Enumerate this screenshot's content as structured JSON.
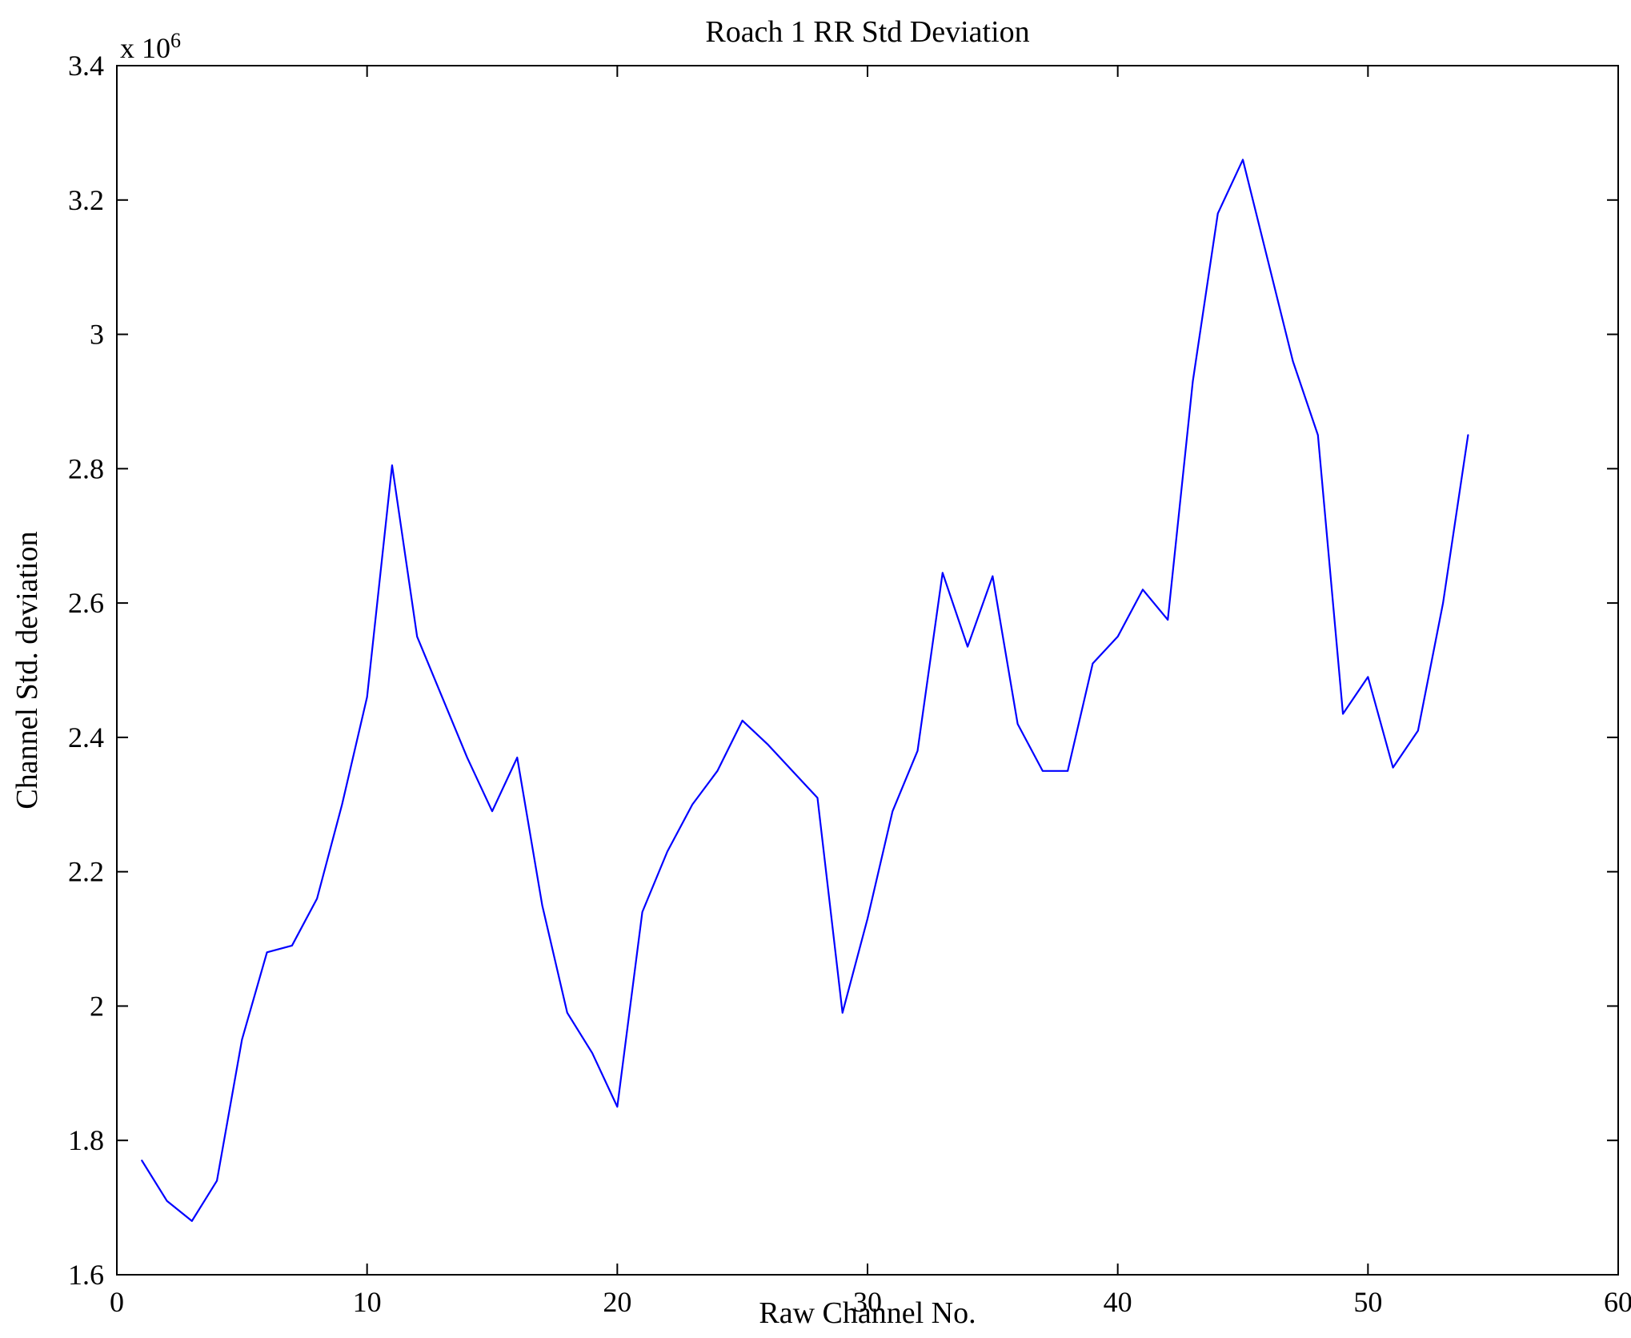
{
  "chart_data": {
    "type": "line",
    "title": "Roach 1 RR Std Deviation",
    "xlabel": "Raw Channel No.",
    "ylabel": "Channel Std. deviation",
    "y_axis_multiplier": "x 10",
    "y_axis_exponent": "6",
    "xlim": [
      0,
      60
    ],
    "ylim": [
      1.6,
      3.4
    ],
    "xticks": [
      0,
      10,
      20,
      30,
      40,
      50,
      60
    ],
    "xtick_labels": [
      "0",
      "10",
      "20",
      "30",
      "40",
      "50",
      "60"
    ],
    "yticks": [
      1.6,
      1.8,
      2,
      2.2,
      2.4,
      2.6,
      2.8,
      3,
      3.2,
      3.4
    ],
    "ytick_labels": [
      "1.6",
      "1.8",
      "2",
      "2.2",
      "2.4",
      "2.6",
      "2.8",
      "3",
      "3.2",
      "3.4"
    ],
    "grid": false,
    "legend": "none",
    "line_color": "#0000ff",
    "axis_color": "#000000",
    "x": [
      1,
      2,
      3,
      4,
      5,
      6,
      7,
      8,
      9,
      10,
      11,
      12,
      13,
      14,
      15,
      16,
      17,
      18,
      19,
      20,
      21,
      22,
      23,
      24,
      25,
      26,
      27,
      28,
      29,
      30,
      31,
      32,
      33,
      34,
      35,
      36,
      37,
      38,
      39,
      40,
      41,
      42,
      43,
      44,
      45,
      46,
      47,
      48,
      49,
      50,
      51,
      52,
      53,
      54
    ],
    "y": [
      1.77,
      1.71,
      1.68,
      1.74,
      1.95,
      2.08,
      2.09,
      2.16,
      2.3,
      2.46,
      2.805,
      2.55,
      2.46,
      2.37,
      2.29,
      2.37,
      2.15,
      1.99,
      1.93,
      1.85,
      2.14,
      2.23,
      2.3,
      2.35,
      2.425,
      2.39,
      2.35,
      2.31,
      1.99,
      2.13,
      2.29,
      2.38,
      2.645,
      2.535,
      2.64,
      2.42,
      2.35,
      2.35,
      2.51,
      2.55,
      2.62,
      2.575,
      2.93,
      3.18,
      3.26,
      3.11,
      2.96,
      2.85,
      2.435,
      2.49,
      2.355,
      2.41,
      2.6,
      2.85
    ]
  }
}
